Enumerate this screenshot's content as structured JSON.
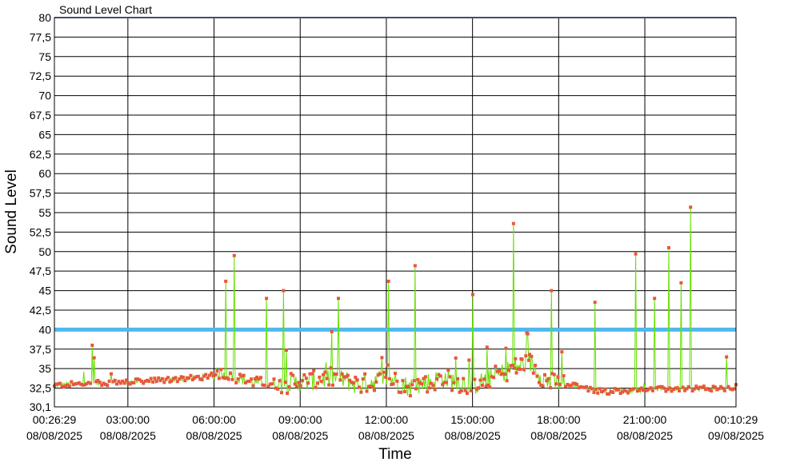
{
  "chart_data": {
    "type": "line",
    "title": "Sound Level Chart",
    "xlabel": "Time",
    "ylabel": "Sound Level",
    "grid": true,
    "ylim": [
      30.1,
      80
    ],
    "xlim": [
      "2025-08-08 00:26:29",
      "2025-08-09 00:10:29"
    ],
    "y_ticks": [
      "30,1",
      "32,5",
      "35",
      "37,5",
      "40",
      "42,5",
      "45",
      "47,5",
      "50",
      "52,5",
      "55",
      "57,5",
      "60",
      "62,5",
      "65",
      "67,5",
      "70",
      "72,5",
      "75",
      "77,5",
      "80"
    ],
    "x_ticks": [
      {
        "time": "00:26:29",
        "date": "08/08/2025"
      },
      {
        "time": "03:00:00",
        "date": "08/08/2025"
      },
      {
        "time": "06:00:00",
        "date": "08/08/2025"
      },
      {
        "time": "09:00:00",
        "date": "08/08/2025"
      },
      {
        "time": "12:00:00",
        "date": "08/08/2025"
      },
      {
        "time": "15:00:00",
        "date": "08/08/2025"
      },
      {
        "time": "18:00:00",
        "date": "08/08/2025"
      },
      {
        "time": "21:00:00",
        "date": "08/08/2025"
      },
      {
        "time": "00:10:29",
        "date": "09/08/2025"
      }
    ],
    "threshold": {
      "value": 40,
      "color": "#4fb8f0"
    },
    "top_line": {
      "value": 80,
      "color": "#8a9ed8"
    },
    "series": [
      {
        "line_color": "#66e000",
        "marker_color": "#e8573a",
        "peaks": [
          {
            "time": "01:45",
            "value": 38
          },
          {
            "time": "06:25",
            "value": 46.2
          },
          {
            "time": "06:42",
            "value": 49.5
          },
          {
            "time": "07:50",
            "value": 44
          },
          {
            "time": "08:25",
            "value": 45
          },
          {
            "time": "10:20",
            "value": 44
          },
          {
            "time": "12:05",
            "value": 46.2
          },
          {
            "time": "13:00",
            "value": 48.2
          },
          {
            "time": "15:00",
            "value": 44.5
          },
          {
            "time": "16:25",
            "value": 53.6
          },
          {
            "time": "17:45",
            "value": 45
          },
          {
            "time": "19:15",
            "value": 43.5
          },
          {
            "time": "20:40",
            "value": 49.7
          },
          {
            "time": "21:20",
            "value": 44
          },
          {
            "time": "21:50",
            "value": 50.5
          },
          {
            "time": "22:15",
            "value": 46
          },
          {
            "time": "22:35",
            "value": 55.7
          },
          {
            "time": "23:50",
            "value": 36.5
          }
        ]
      }
    ]
  }
}
